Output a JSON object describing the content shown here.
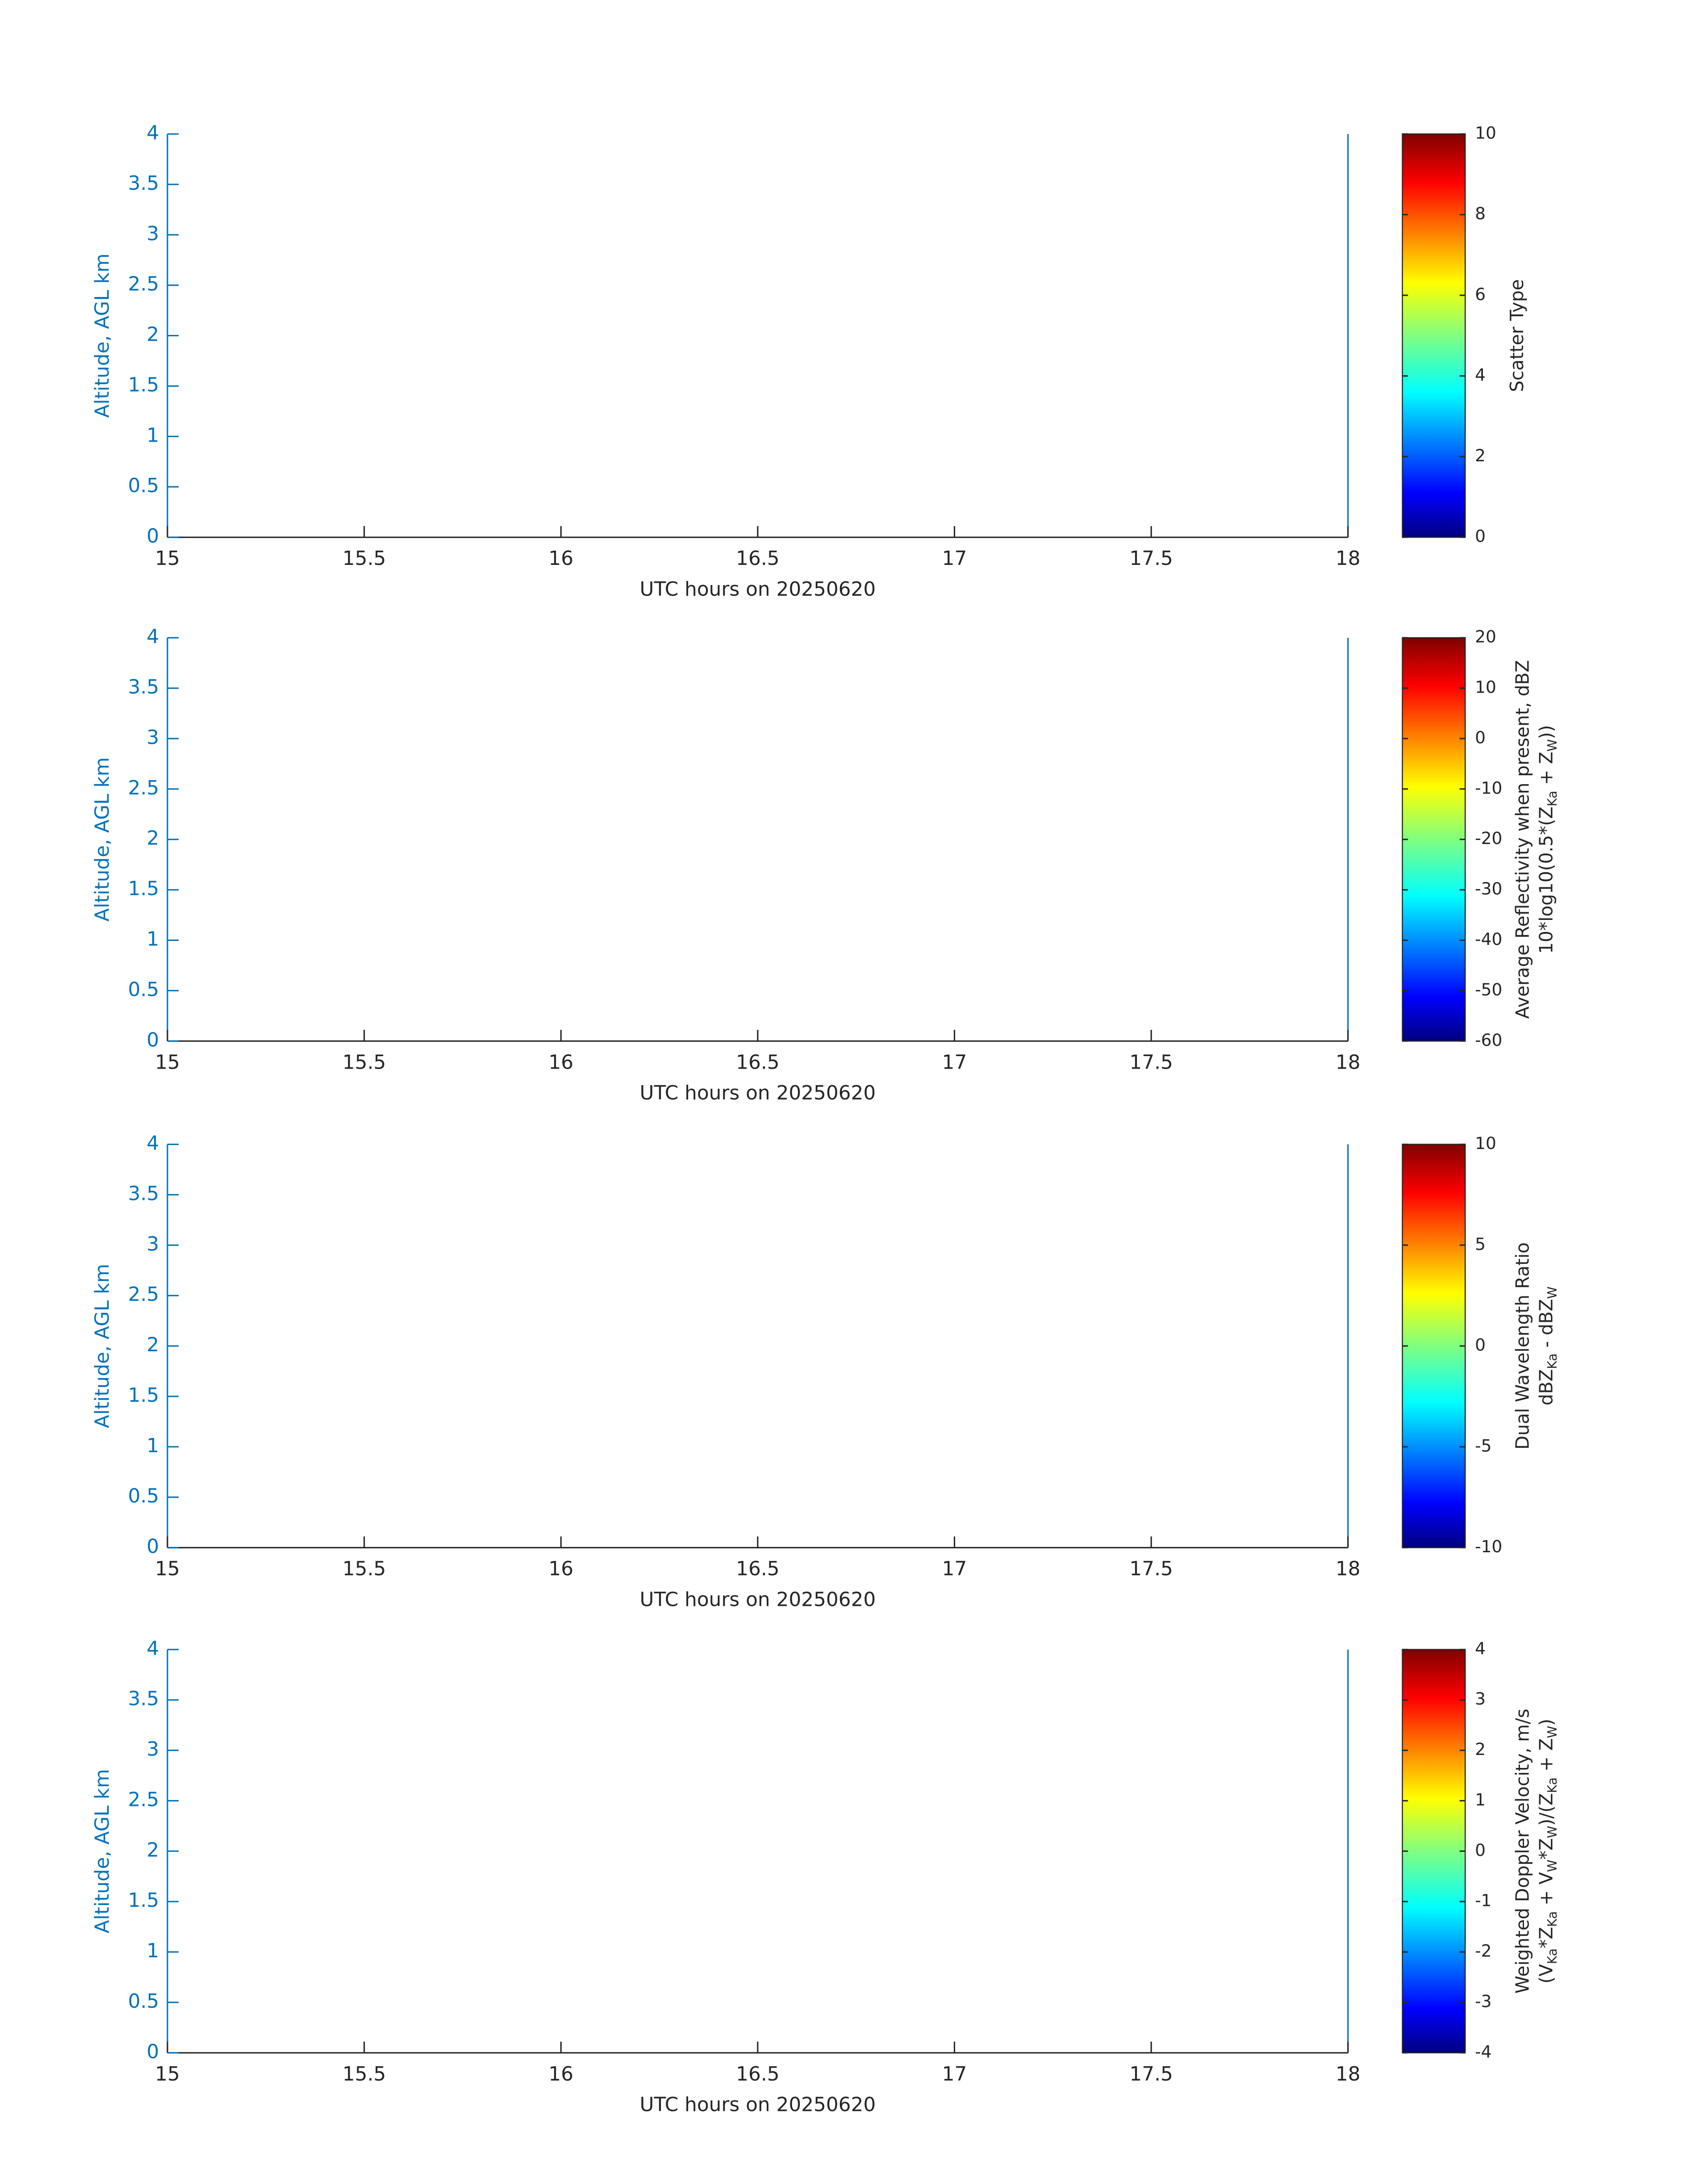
{
  "chart_data": [
    {
      "type": "heatmap",
      "colormap": "jet",
      "xlabel": "UTC hours on 20250620",
      "ylabel": "Altitude, AGL km",
      "xlim": [
        15,
        18
      ],
      "xticks": [
        15,
        15.5,
        16,
        16.5,
        17,
        17.5,
        18
      ],
      "ylim": [
        0,
        4
      ],
      "yticks": [
        0,
        0.5,
        1,
        1.5,
        2,
        2.5,
        3,
        3.5,
        4
      ],
      "clim": [
        0,
        10
      ],
      "cticks": [
        0,
        2,
        4,
        6,
        8,
        10
      ],
      "colorbar_label": [
        [
          "Scatter Type"
        ]
      ]
    },
    {
      "type": "heatmap",
      "colormap": "jet",
      "xlabel": "UTC hours on 20250620",
      "ylabel": "Altitude, AGL km",
      "xlim": [
        15,
        18
      ],
      "xticks": [
        15,
        15.5,
        16,
        16.5,
        17,
        17.5,
        18
      ],
      "ylim": [
        0,
        4
      ],
      "yticks": [
        0,
        0.5,
        1,
        1.5,
        2,
        2.5,
        3,
        3.5,
        4
      ],
      "clim": [
        -60,
        20
      ],
      "cticks": [
        -60,
        -50,
        -40,
        -30,
        -20,
        -10,
        0,
        10,
        20
      ],
      "colorbar_label": [
        [
          "Average Reflectivity when present, dBZ"
        ],
        [
          "10*log10(0.5*(Z",
          {
            "sub": "Ka"
          },
          " + Z",
          {
            "sub": "W"
          },
          "))"
        ]
      ]
    },
    {
      "type": "heatmap",
      "colormap": "jet",
      "xlabel": "UTC hours on 20250620",
      "ylabel": "Altitude, AGL km",
      "xlim": [
        15,
        18
      ],
      "xticks": [
        15,
        15.5,
        16,
        16.5,
        17,
        17.5,
        18
      ],
      "ylim": [
        0,
        4
      ],
      "yticks": [
        0,
        0.5,
        1,
        1.5,
        2,
        2.5,
        3,
        3.5,
        4
      ],
      "clim": [
        -10,
        10
      ],
      "cticks": [
        -10,
        -5,
        0,
        5,
        10
      ],
      "colorbar_label": [
        [
          "Dual Wavelength Ratio"
        ],
        [
          "dBZ",
          {
            "sub": "Ka"
          },
          " - dBZ",
          {
            "sub": "W"
          }
        ]
      ]
    },
    {
      "type": "heatmap",
      "colormap": "jet",
      "xlabel": "UTC hours on 20250620",
      "ylabel": "Altitude, AGL km",
      "xlim": [
        15,
        18
      ],
      "xticks": [
        15,
        15.5,
        16,
        16.5,
        17,
        17.5,
        18
      ],
      "ylim": [
        0,
        4
      ],
      "yticks": [
        0,
        0.5,
        1,
        1.5,
        2,
        2.5,
        3,
        3.5,
        4
      ],
      "clim": [
        -4,
        4
      ],
      "cticks": [
        -4,
        -3,
        -2,
        -1,
        0,
        1,
        2,
        3,
        4
      ],
      "colorbar_label": [
        [
          "Weighted Doppler Velocity, m/s"
        ],
        [
          "(V",
          {
            "sub": "Ka"
          },
          "*Z",
          {
            "sub": "Ka"
          },
          " + V",
          {
            "sub": "W"
          },
          "*Z",
          {
            "sub": "W"
          },
          ")/(Z",
          {
            "sub": "Ka"
          },
          " + Z",
          {
            "sub": "W"
          },
          ")"
        ]
      ]
    }
  ]
}
